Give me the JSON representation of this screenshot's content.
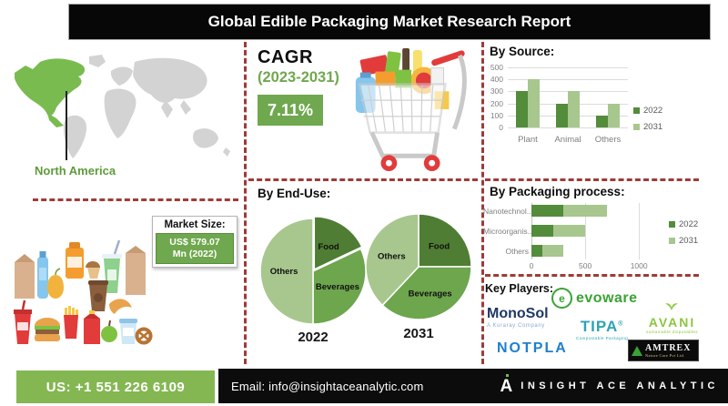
{
  "title": "Global Edible Packaging Market Research Report",
  "colors": {
    "accent_green": "#6fa84e",
    "footer_green": "#84b752",
    "series_2022": "#538c3a",
    "series_2031": "#a7c78e",
    "pie_food": "#4f7d33",
    "pie_beverages": "#6da64d",
    "pie_others": "#a7c78e",
    "divider_red": "#9e3b38",
    "map_highlight": "#79bb4f",
    "map_gray": "#d3d3d3"
  },
  "map": {
    "region_label": "North America"
  },
  "cagr": {
    "heading": "CAGR",
    "period": "(2023-2031)",
    "value": "7.11%"
  },
  "market_size": {
    "heading": "Market Size:",
    "line1": "US$ 579.07",
    "line2": "Mn (2022)"
  },
  "chart_data": [
    {
      "id": "by-source",
      "type": "bar",
      "title": "By Source:",
      "categories": [
        "Plant",
        "Animal",
        "Others"
      ],
      "series": [
        {
          "name": "2022",
          "color": "#538c3a",
          "values": [
            300,
            200,
            100
          ]
        },
        {
          "name": "2031",
          "color": "#a7c78e",
          "values": [
            400,
            300,
            200
          ]
        }
      ],
      "ylim": [
        0,
        500
      ],
      "yticks": [
        0,
        100,
        200,
        300,
        400,
        500
      ],
      "grid": true,
      "legend_position": "right"
    },
    {
      "id": "by-end-use",
      "type": "pie",
      "title": "By End-Use:",
      "pies": [
        {
          "label": "2022",
          "slices": [
            {
              "name": "Food",
              "pct": 18,
              "color": "#4f7d33",
              "offset": 2.5
            },
            {
              "name": "Beverages",
              "pct": 32,
              "color": "#6da64d"
            },
            {
              "name": "Others",
              "pct": 50,
              "color": "#a7c78e"
            }
          ]
        },
        {
          "label": "2031",
          "slices": [
            {
              "name": "Food",
              "pct": 25,
              "color": "#4f7d33"
            },
            {
              "name": "Beverages",
              "pct": 37,
              "color": "#6da64d"
            },
            {
              "name": "Others",
              "pct": 38,
              "color": "#a7c78e"
            }
          ]
        }
      ]
    },
    {
      "id": "by-packaging",
      "type": "hbar-stacked",
      "title": "By Packaging process:",
      "categories": [
        "Nanotechnol...",
        "Microorganis...",
        "Others"
      ],
      "series": [
        {
          "name": "2022",
          "color": "#538c3a",
          "values": [
            300,
            200,
            100
          ]
        },
        {
          "name": "2031",
          "color": "#a7c78e",
          "values": [
            400,
            300,
            200
          ]
        }
      ],
      "xlim": [
        0,
        1100
      ],
      "xticks": [
        0,
        500,
        1000
      ],
      "grid": true,
      "legend_position": "right"
    }
  ],
  "key_players": {
    "heading": "Key Players:",
    "players": [
      {
        "name": "evoware",
        "tagline": ""
      },
      {
        "name": "MonoSol",
        "tagline": "A Kuraray Company"
      },
      {
        "name": "TIPA",
        "mark": "®",
        "tagline": "Compostable Packaging"
      },
      {
        "name": "AVANI",
        "tagline": "sustainable disposables"
      },
      {
        "name": "NOTPLA",
        "tagline": ""
      },
      {
        "name": "AMTREX",
        "tagline": "Nature Care Pvt Ltd."
      }
    ]
  },
  "footer": {
    "phone": "US: +1 551 226 6109",
    "email": "Email: info@insightaceanalytic.com",
    "brand": "INSIGHT ACE ANALYTIC",
    "brand_icon": "A"
  }
}
